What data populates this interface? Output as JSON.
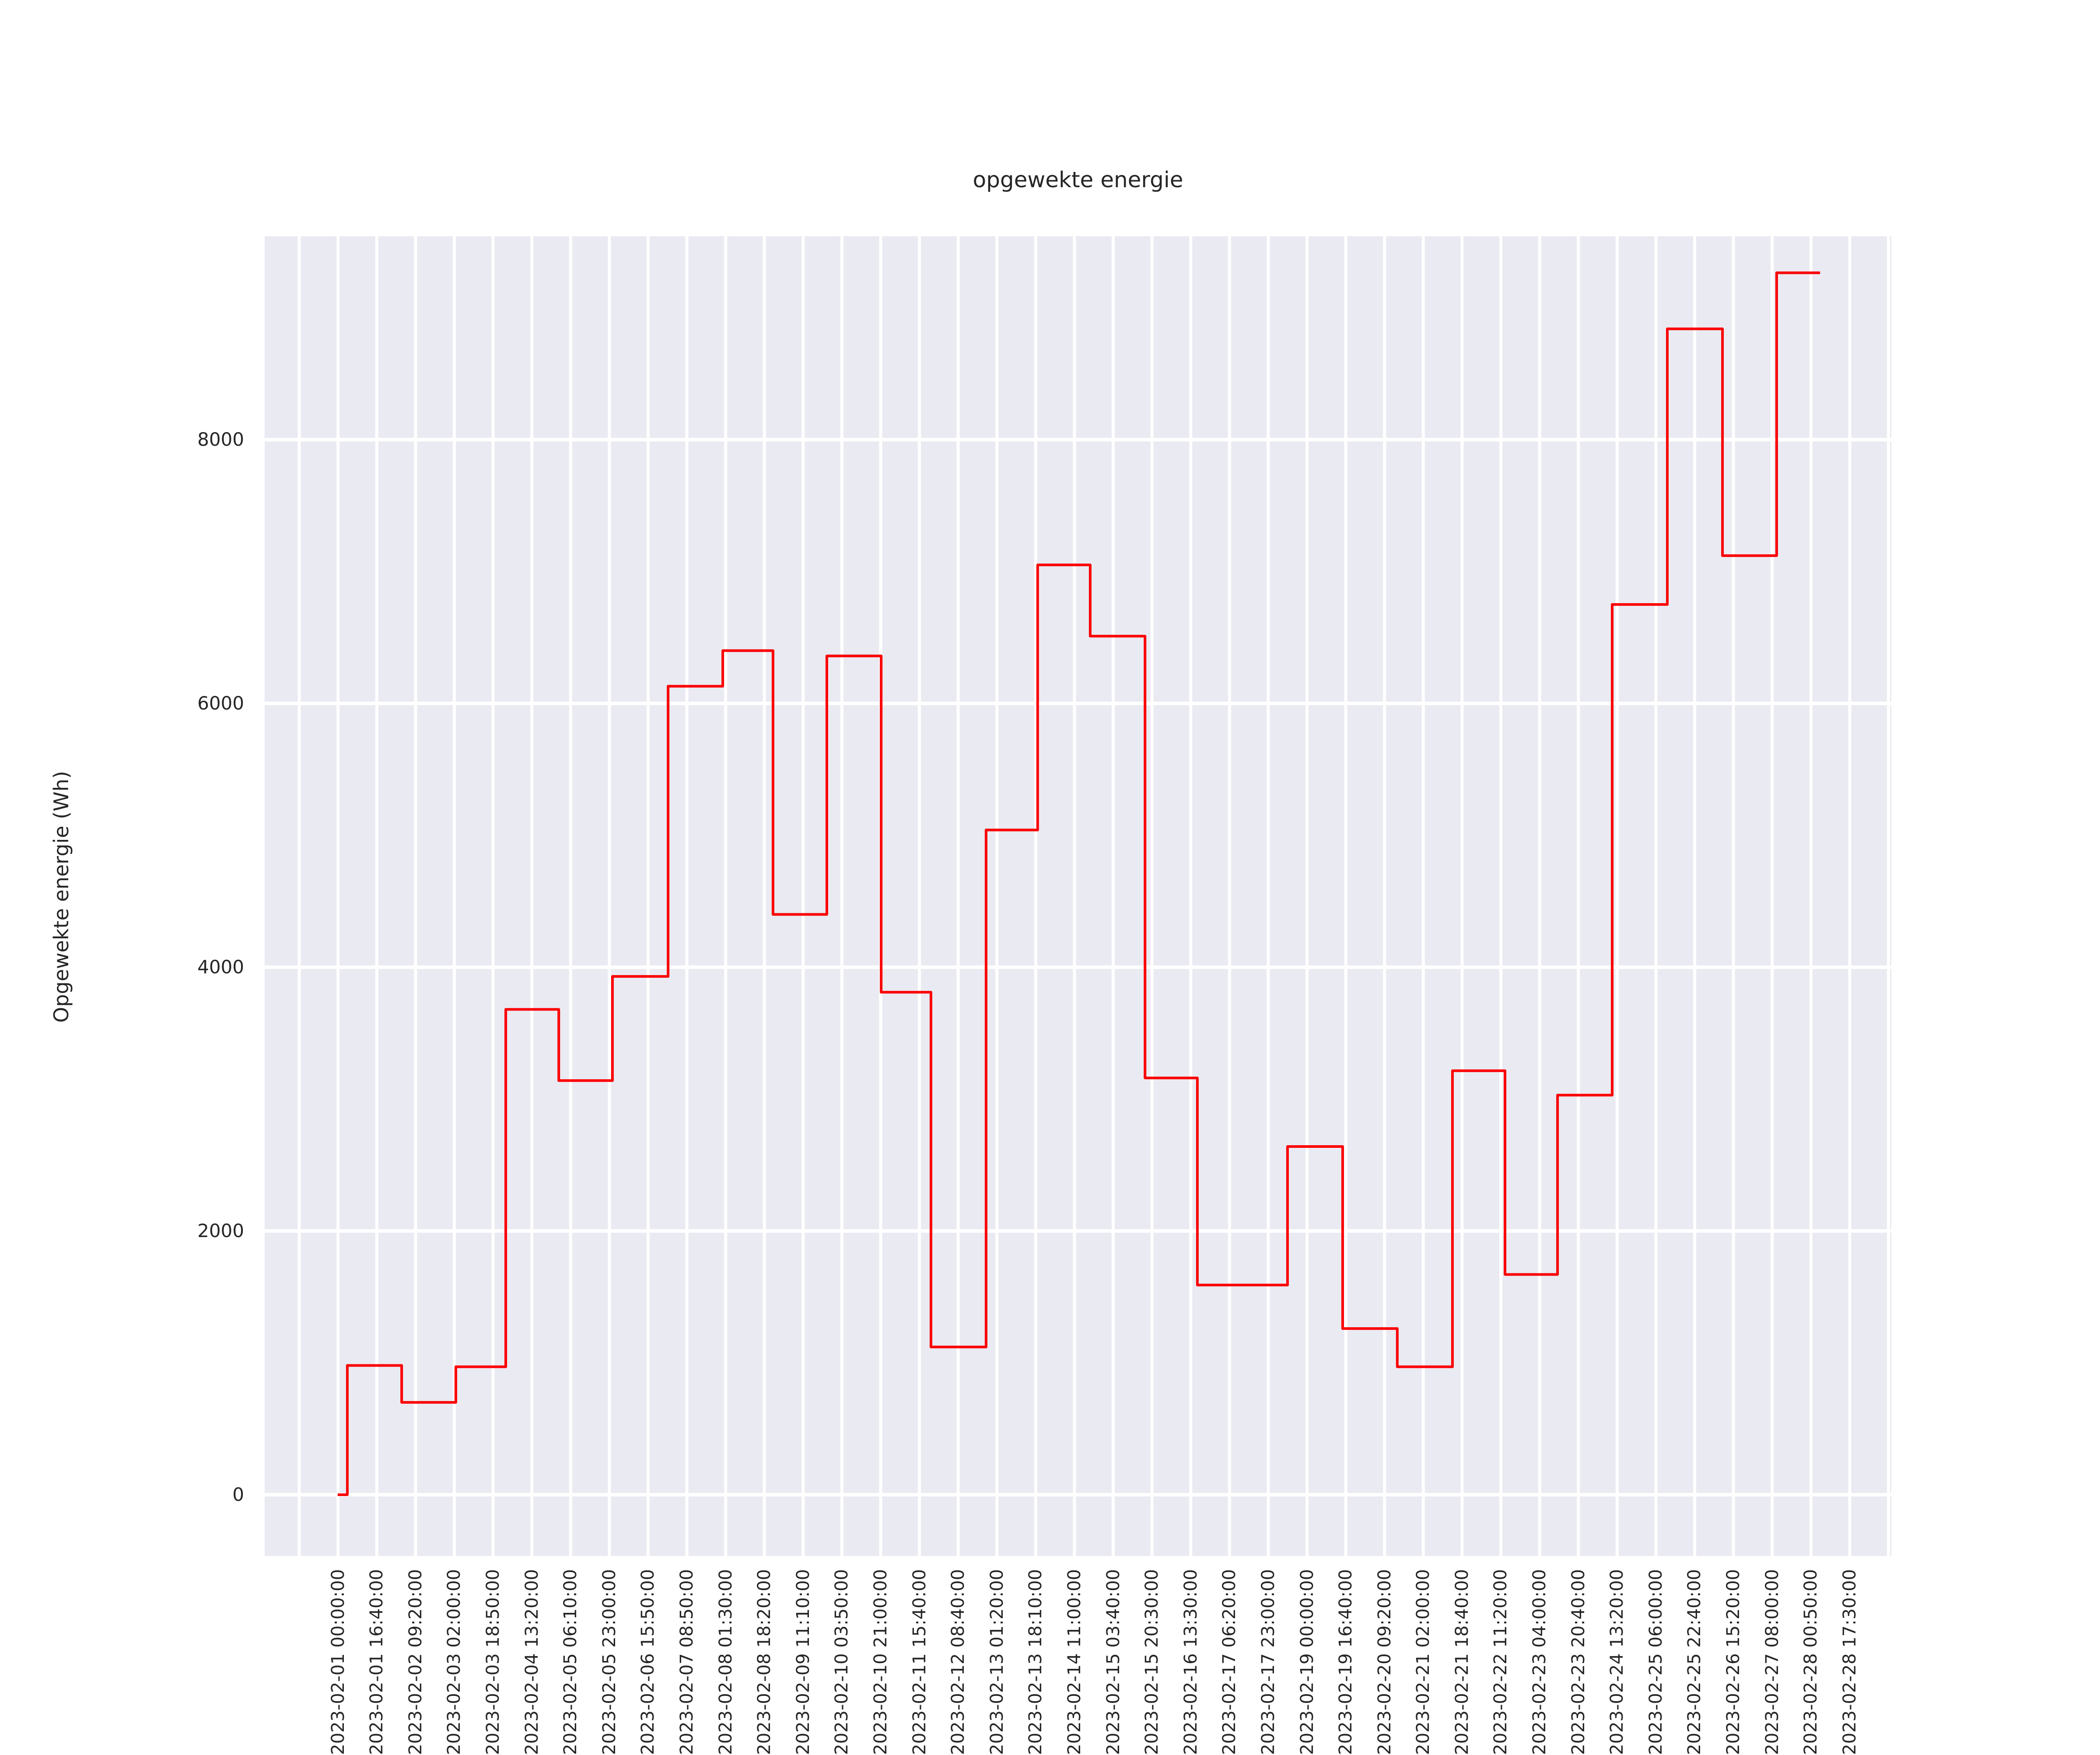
{
  "title": "opgewekte energie",
  "colors": {
    "figure_background": "#ffffff",
    "plot_background": "#eaeaf2",
    "gridline": "#ffffff",
    "line": "#fb0000",
    "text": "#262626"
  },
  "y_axis": {
    "label": "Opgewekte energie (Wh)",
    "tick_labels": [
      "0",
      "2000",
      "4000",
      "6000",
      "8000"
    ],
    "tick_values": [
      0,
      2000,
      4000,
      6000,
      8000
    ],
    "limits": [
      -464,
      9542
    ]
  },
  "x_axis": {
    "tick_labels": [
      "2023-02-01 00:00:00",
      "2023-02-01 16:40:00",
      "2023-02-02 09:20:00",
      "2023-02-03 02:00:00",
      "2023-02-03 18:50:00",
      "2023-02-04 13:20:00",
      "2023-02-05 06:10:00",
      "2023-02-05 23:00:00",
      "2023-02-06 15:50:00",
      "2023-02-07 08:50:00",
      "2023-02-08 01:30:00",
      "2023-02-08 18:20:00",
      "2023-02-09 11:10:00",
      "2023-02-10 03:50:00",
      "2023-02-10 21:00:00",
      "2023-02-11 15:40:00",
      "2023-02-12 08:40:00",
      "2023-02-13 01:20:00",
      "2023-02-13 18:10:00",
      "2023-02-14 11:00:00",
      "2023-02-15 03:40:00",
      "2023-02-15 20:30:00",
      "2023-02-16 13:30:00",
      "2023-02-17 06:20:00",
      "2023-02-17 23:00:00",
      "2023-02-19 00:00:00",
      "2023-02-19 16:40:00",
      "2023-02-20 09:20:00",
      "2023-02-21 02:00:00",
      "2023-02-21 18:40:00",
      "2023-02-22 11:20:00",
      "2023-02-23 04:00:00",
      "2023-02-23 20:40:00",
      "2023-02-24 13:20:00",
      "2023-02-25 06:00:00",
      "2023-02-25 22:40:00",
      "2023-02-26 15:20:00",
      "2023-02-27 08:00:00",
      "2023-02-28 00:50:00",
      "2023-02-28 17:30:00"
    ],
    "num_gridlines": 42,
    "first_gridline_frac": 0.02125,
    "gridline_spacing_frac": 0.023829
  },
  "chart_data": {
    "type": "line",
    "style": "step",
    "title": "opgewekte energie",
    "xlabel": "",
    "ylabel": "Opgewekte energie (Wh)",
    "legend": "none",
    "grid": "on",
    "series": [
      {
        "name": "opgewekte energie",
        "color": "#fb0000",
        "dates": [
          "2023-02-01",
          "2023-02-02",
          "2023-02-03",
          "2023-02-04",
          "2023-02-05",
          "2023-02-06",
          "2023-02-07",
          "2023-02-08",
          "2023-02-09",
          "2023-02-10",
          "2023-02-11",
          "2023-02-12",
          "2023-02-13",
          "2023-02-14",
          "2023-02-15",
          "2023-02-16",
          "2023-02-17",
          "2023-02-18",
          "2023-02-19",
          "2023-02-20",
          "2023-02-21",
          "2023-02-22",
          "2023-02-23",
          "2023-02-24",
          "2023-02-25",
          "2023-02-26",
          "2023-02-27",
          "2023-02-28"
        ],
        "values": [
          0,
          980,
          700,
          970,
          3680,
          3140,
          3930,
          6130,
          6400,
          4400,
          6360,
          3810,
          1120,
          5040,
          7050,
          6510,
          3160,
          1590,
          2640,
          1260,
          970,
          3215,
          1670,
          3030,
          6750,
          8840,
          7120,
          9265
        ]
      }
    ],
    "step_boundaries_frac": [
      0.0449,
      0.0508,
      0.0842,
      0.1175,
      0.1482,
      0.1808,
      0.2138,
      0.248,
      0.2816,
      0.3125,
      0.3456,
      0.379,
      0.4096,
      0.4435,
      0.4752,
      0.5075,
      0.5412,
      0.5734,
      0.6288,
      0.6627,
      0.6963,
      0.7302,
      0.7625,
      0.7948,
      0.8284,
      0.8623,
      0.8962,
      0.9295,
      0.9562
    ],
    "ylim": [
      -464,
      9542
    ],
    "y_gridline_values": [
      0,
      2000,
      4000,
      6000,
      8000
    ]
  }
}
